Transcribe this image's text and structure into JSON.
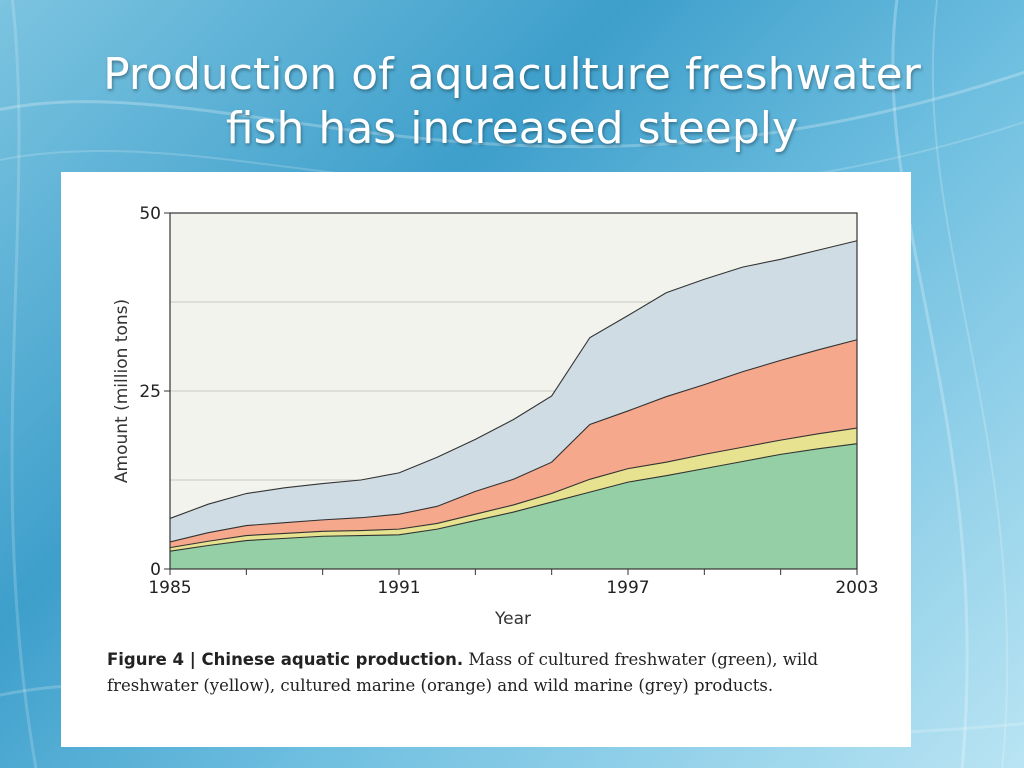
{
  "slide": {
    "title_line1": "Production of aquaculture freshwater",
    "title_line2": "fish has increased steeply"
  },
  "caption": {
    "label": "Figure 4 | Chinese aquatic production.",
    "text": " Mass of cultured freshwater (green), wild freshwater (yellow), cultured marine (orange) and wild marine (grey) products."
  },
  "chart_data": {
    "type": "area",
    "stacked": true,
    "xlabel": "Year",
    "ylabel": "Amount (million tons)",
    "xlim": [
      1985,
      2003
    ],
    "ylim": [
      0,
      50
    ],
    "x_ticks": [
      1985,
      1991,
      1997,
      2003
    ],
    "y_ticks": [
      0,
      25,
      50
    ],
    "gridlines_y": [
      12.5,
      25,
      37.5
    ],
    "x": [
      1985,
      1986,
      1987,
      1988,
      1989,
      1990,
      1991,
      1992,
      1993,
      1994,
      1995,
      1996,
      1997,
      1998,
      1999,
      2000,
      2001,
      2002,
      2003
    ],
    "series": [
      {
        "color": "#95cfa6",
        "values": [
          2.5,
          3.3,
          4.0,
          4.3,
          4.6,
          4.7,
          4.8,
          5.6,
          6.8,
          8.0,
          9.4,
          10.8,
          12.2,
          13.1,
          14.1,
          15.1,
          16.1,
          16.9,
          17.6
        ]
      },
      {
        "color": "#e6e28f",
        "values": [
          0.5,
          0.6,
          0.7,
          0.7,
          0.7,
          0.7,
          0.8,
          0.8,
          0.9,
          1.0,
          1.2,
          1.8,
          1.9,
          1.9,
          2.0,
          2.0,
          2.0,
          2.1,
          2.2
        ]
      },
      {
        "color": "#f5a88c",
        "values": [
          0.8,
          1.2,
          1.4,
          1.5,
          1.6,
          1.8,
          2.1,
          2.4,
          3.2,
          3.6,
          4.4,
          7.7,
          8.1,
          9.2,
          9.8,
          10.6,
          11.2,
          11.8,
          12.4
        ]
      },
      {
        "color": "#cfdce4",
        "values": [
          3.3,
          4.0,
          4.5,
          4.9,
          5.1,
          5.3,
          5.8,
          6.9,
          7.3,
          8.4,
          9.3,
          12.2,
          13.4,
          14.6,
          14.8,
          14.7,
          14.2,
          14.0,
          13.9
        ]
      }
    ]
  }
}
